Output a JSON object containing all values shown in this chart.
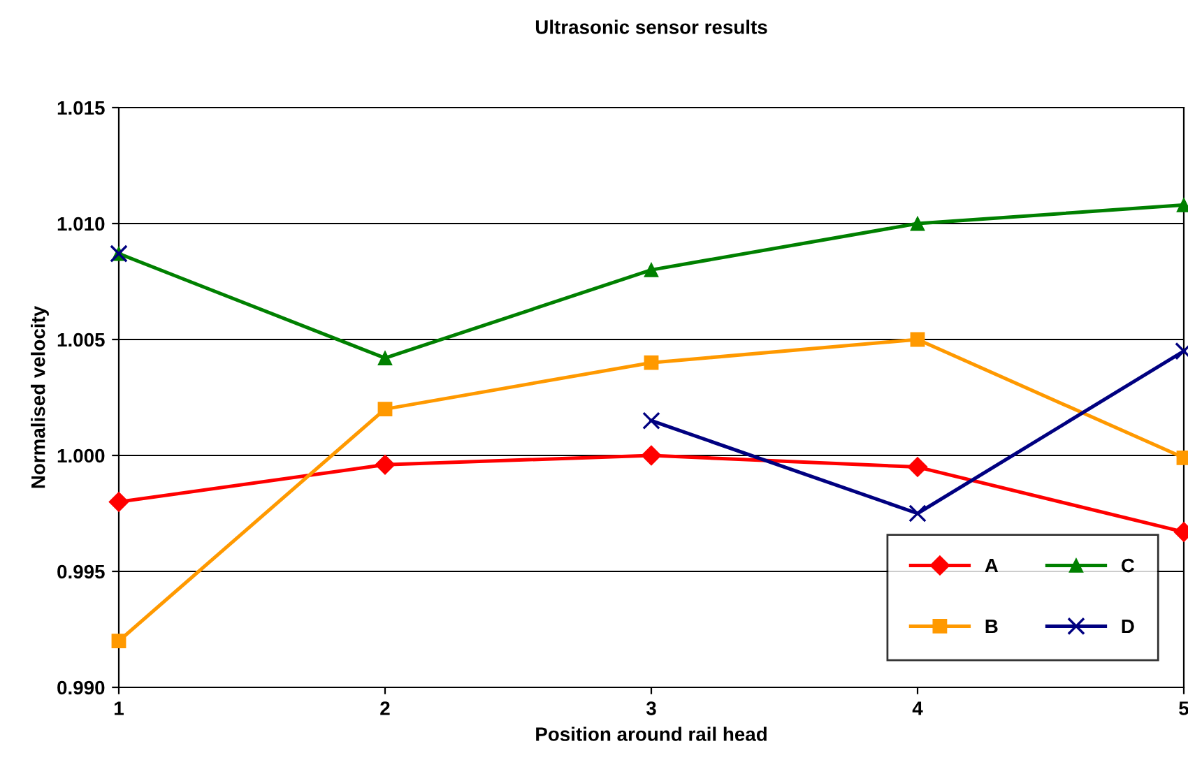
{
  "chart_data": {
    "type": "line",
    "title": "Ultrasonic sensor results",
    "xlabel": "Position around rail head",
    "ylabel": "Normalised velocity",
    "x": [
      1,
      2,
      3,
      4,
      5
    ],
    "series": [
      {
        "name": "A",
        "color": "#ff0000",
        "marker": "diamond",
        "values": [
          0.998,
          0.9996,
          1.0,
          0.9995,
          0.9967
        ]
      },
      {
        "name": "B",
        "color": "#ff9900",
        "marker": "square",
        "values": [
          0.992,
          1.002,
          1.004,
          1.005,
          0.9999
        ]
      },
      {
        "name": "C",
        "color": "#008000",
        "marker": "triangle",
        "values": [
          1.0087,
          1.0042,
          1.008,
          1.01,
          1.0108
        ]
      },
      {
        "name": "D",
        "color": "#000080",
        "marker": "cross",
        "values": [
          1.0087,
          null,
          1.0015,
          0.9975,
          1.0045
        ]
      }
    ],
    "xlim": [
      1,
      5
    ],
    "xticks": [
      1,
      2,
      3,
      4,
      5
    ],
    "ylim": [
      0.99,
      1.015
    ],
    "yticks": [
      {
        "value": 0.99,
        "label": "0.990"
      },
      {
        "value": 0.995,
        "label": "0.995"
      },
      {
        "value": 1.0,
        "label": "1.000"
      },
      {
        "value": 1.005,
        "label": "1.005"
      },
      {
        "value": 1.01,
        "label": "1.010"
      },
      {
        "value": 1.015,
        "label": "1.015"
      }
    ],
    "grid": "y",
    "legend": "bottom right",
    "line_style": "solid"
  }
}
